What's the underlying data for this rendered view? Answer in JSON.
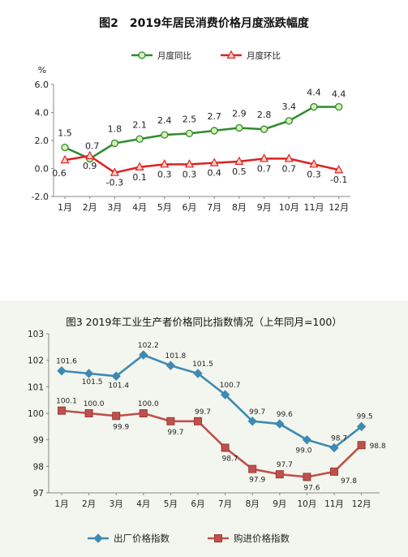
{
  "chart_data": [
    {
      "type": "line",
      "title": "图2　2019年居民消费价格月度涨跌幅度",
      "ylabel": "%",
      "ylim": [
        -2.0,
        6.0
      ],
      "yticks": [
        "6.0",
        "4.0",
        "2.0",
        "0.0",
        "-2.0"
      ],
      "ytick_values": [
        6,
        4,
        2,
        0,
        -2
      ],
      "categories": [
        "1月",
        "2月",
        "3月",
        "4月",
        "5月",
        "6月",
        "7月",
        "8月",
        "9月",
        "10月",
        "11月",
        "12月"
      ],
      "legend_position": "top",
      "grid": false,
      "series": [
        {
          "name": "月度同比",
          "color": "#2e8b2e",
          "marker": "circle",
          "values": [
            1.5,
            0.7,
            1.8,
            2.1,
            2.4,
            2.5,
            2.7,
            2.9,
            2.8,
            3.4,
            4.4,
            4.4
          ],
          "labels": [
            "1.5",
            "0.7",
            "1.8",
            "2.1",
            "2.4",
            "2.5",
            "2.7",
            "2.9",
            "2.8",
            "3.4",
            "4.4",
            "4.4"
          ]
        },
        {
          "name": "月度环比",
          "color": "#e02020",
          "marker": "triangle",
          "values": [
            0.6,
            0.9,
            -0.3,
            0.1,
            0.3,
            0.3,
            0.4,
            0.5,
            0.7,
            0.7,
            0.3,
            -0.1
          ],
          "labels": [
            "0.6",
            "0.9",
            "-0.3",
            "0.1",
            "0.3",
            "0.3",
            "0.4",
            "0.5",
            "0.7",
            "0.7",
            "0.3",
            "-0.1"
          ]
        }
      ]
    },
    {
      "type": "line",
      "title": "图3 2019年工业生产者价格同比指数情况（上年同月=100）",
      "ylim": [
        97,
        103
      ],
      "yticks": [
        "103",
        "102",
        "101",
        "100",
        "99",
        "98",
        "97"
      ],
      "ytick_values": [
        103,
        102,
        101,
        100,
        99,
        98,
        97
      ],
      "categories": [
        "1月",
        "2月",
        "3月",
        "4月",
        "5月",
        "6月",
        "7月",
        "8月",
        "9月",
        "10月",
        "11月",
        "12月"
      ],
      "legend_position": "bottom",
      "grid": false,
      "series": [
        {
          "name": "出厂价格指数",
          "color": "#3d8ab3",
          "marker": "diamond",
          "values": [
            101.6,
            101.5,
            101.4,
            102.2,
            101.8,
            101.5,
            100.7,
            99.7,
            99.6,
            99.0,
            98.7,
            99.5
          ],
          "labels": [
            "101.6",
            "101.5",
            "101.4",
            "102.2",
            "101.8",
            "101.5",
            "100.7",
            "99.7",
            "99.6",
            "99.0",
            "98.7",
            "99.5"
          ]
        },
        {
          "name": "购进价格指数",
          "color": "#c0504d",
          "marker": "square",
          "values": [
            100.1,
            100.0,
            99.9,
            100.0,
            99.7,
            99.7,
            98.7,
            97.9,
            97.7,
            97.6,
            97.8,
            98.8
          ],
          "labels": [
            "100.1",
            "100.0",
            "99.9",
            "100.0",
            "99.7",
            "99.7",
            "98.7",
            "97.9",
            "97.7",
            "97.6",
            "97.8",
            "98.8"
          ]
        }
      ]
    }
  ]
}
